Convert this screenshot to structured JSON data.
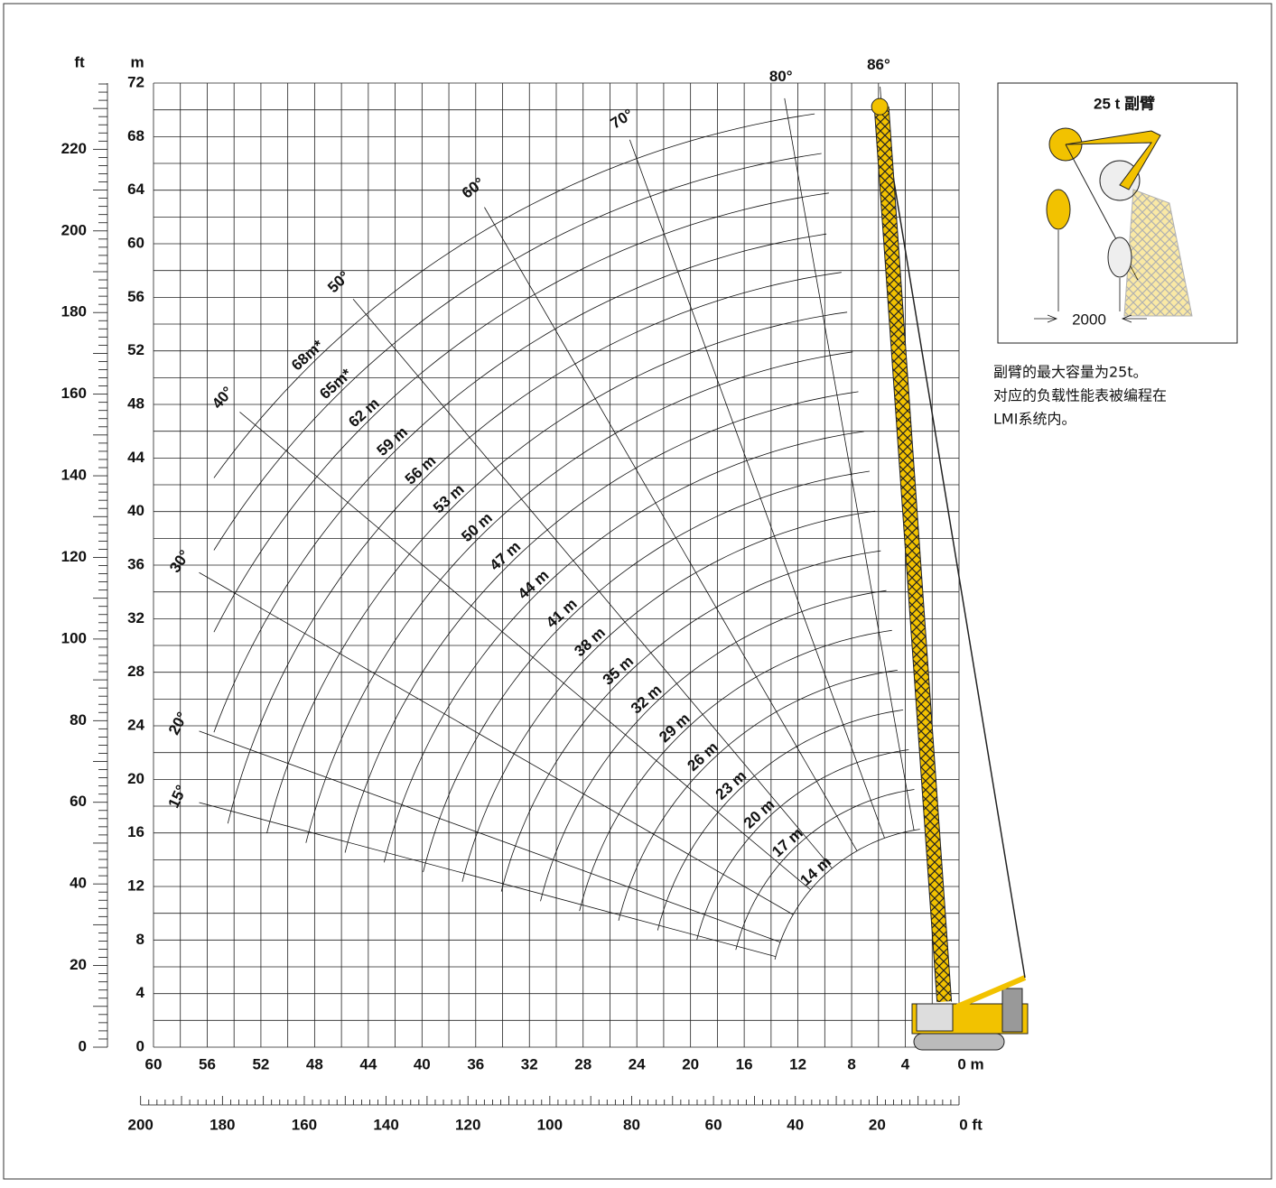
{
  "axes": {
    "ft_label": "ft",
    "m_label": "m",
    "y_m_ticks": [
      "0",
      "4",
      "8",
      "12",
      "16",
      "20",
      "24",
      "28",
      "32",
      "36",
      "40",
      "44",
      "48",
      "52",
      "56",
      "60",
      "64",
      "68",
      "72"
    ],
    "y_ft_ticks": [
      "0",
      "20",
      "40",
      "60",
      "80",
      "100",
      "120",
      "140",
      "160",
      "180",
      "200",
      "220"
    ],
    "x_m_ticks": [
      "60",
      "56",
      "52",
      "48",
      "44",
      "40",
      "36",
      "32",
      "28",
      "24",
      "20",
      "16",
      "12",
      "8",
      "4",
      "0 m"
    ],
    "x_ft_ticks": [
      "200",
      "180",
      "160",
      "140",
      "120",
      "100",
      "80",
      "60",
      "40",
      "20",
      "0 ft"
    ]
  },
  "boom_lengths": [
    "14 m",
    "17 m",
    "20 m",
    "23 m",
    "26 m",
    "29 m",
    "32 m",
    "35 m",
    "38 m",
    "41 m",
    "44 m",
    "47 m",
    "50 m",
    "53 m",
    "56 m",
    "59 m",
    "62 m",
    "65m*",
    "68m*"
  ],
  "boom_angles": [
    "15°",
    "20°",
    "30°",
    "40°",
    "50°",
    "60°",
    "70°",
    "80°",
    "86°"
  ],
  "inset": {
    "title": "25 t 副臂",
    "dimension": "2000"
  },
  "note": [
    "副臂的最大容量为25t。",
    "对应的负载性能表被编程在",
    "LMI系统内。"
  ]
}
